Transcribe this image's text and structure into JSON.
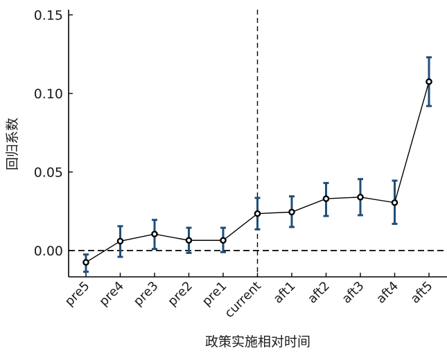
{
  "chart_data": {
    "type": "line",
    "categories": [
      "pre5",
      "pre4",
      "pre3",
      "pre2",
      "pre1",
      "current",
      "aft1",
      "aft2",
      "aft3",
      "aft4",
      "aft5"
    ],
    "series": [
      {
        "values": [
          -0.0075,
          0.006,
          0.0105,
          0.0065,
          0.0065,
          0.0235,
          0.0245,
          0.033,
          0.034,
          0.0305,
          0.1075
        ],
        "ci_lower": [
          -0.0135,
          -0.004,
          0.001,
          -0.0015,
          -0.001,
          0.0135,
          0.015,
          0.022,
          0.0225,
          0.017,
          0.092
        ],
        "ci_upper": [
          -0.0025,
          0.0155,
          0.0195,
          0.0145,
          0.0145,
          0.0335,
          0.0345,
          0.043,
          0.0455,
          0.0445,
          0.123
        ],
        "error_color": "#1f4e79",
        "line_color": "#000000"
      }
    ],
    "title": "",
    "xlabel": "政策实施相对时间",
    "ylabel": "回归系数",
    "ylim": [
      -0.018,
      0.155
    ],
    "yticks": [
      0.0,
      0.05,
      0.1,
      0.15
    ],
    "ytick_labels": [
      "0.00",
      "0.05",
      "0.10",
      "0.15"
    ],
    "reference_lines": {
      "horizontal_y": 0.0,
      "vertical_at_category": "current"
    },
    "grid": false,
    "legend": "none"
  }
}
